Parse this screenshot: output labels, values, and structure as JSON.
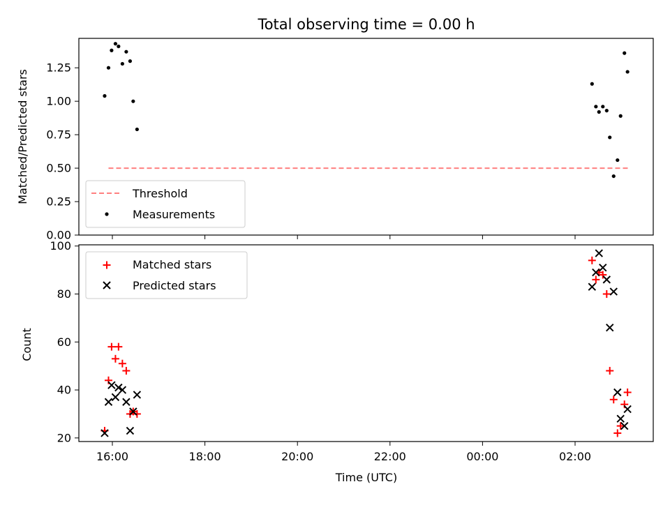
{
  "title": "Total observing time = 0.00 h",
  "chart_data": [
    {
      "type": "scatter",
      "ylabel": "Matched/Predicted stars",
      "xlabel": "",
      "ylim": [
        0,
        1.47
      ],
      "yticks": [
        "0.00",
        "0.25",
        "0.50",
        "0.75",
        "1.00",
        "1.25"
      ],
      "grid": false,
      "legend_position": "lower-left",
      "threshold": {
        "name": "Threshold",
        "value": 0.5,
        "x_start": "15:55",
        "x_end": "03:10",
        "color": "#ff7f7f"
      },
      "series": [
        {
          "name": "Measurements",
          "color": "#000000",
          "points": [
            [
              "15:50",
              1.04
            ],
            [
              "15:55",
              1.25
            ],
            [
              "15:59",
              1.38
            ],
            [
              "16:04",
              1.43
            ],
            [
              "16:08",
              1.41
            ],
            [
              "16:13",
              1.28
            ],
            [
              "16:18",
              1.37
            ],
            [
              "16:23",
              1.3
            ],
            [
              "16:27",
              1.0
            ],
            [
              "16:32",
              0.79
            ],
            [
              "02:22",
              1.13
            ],
            [
              "02:27",
              0.96
            ],
            [
              "02:31",
              0.92
            ],
            [
              "02:36",
              0.96
            ],
            [
              "02:41",
              0.93
            ],
            [
              "02:45",
              0.73
            ],
            [
              "02:50",
              0.44
            ],
            [
              "02:55",
              0.56
            ],
            [
              "02:59",
              0.89
            ],
            [
              "03:04",
              1.36
            ],
            [
              "03:08",
              1.22
            ]
          ]
        }
      ]
    },
    {
      "type": "scatter",
      "ylabel": "Count",
      "xlabel": "Time (UTC)",
      "ylim": [
        18.5,
        100.5
      ],
      "yticks": [
        "20",
        "40",
        "60",
        "80",
        "100"
      ],
      "xticks": [
        "16:00",
        "18:00",
        "20:00",
        "22:00",
        "00:00",
        "02:00"
      ],
      "grid": false,
      "legend_position": "upper-left",
      "series": [
        {
          "name": "Matched stars",
          "marker": "plus",
          "color": "#ff0000",
          "points": [
            [
              "15:50",
              23
            ],
            [
              "15:55",
              44
            ],
            [
              "15:59",
              58
            ],
            [
              "16:04",
              53
            ],
            [
              "16:08",
              58
            ],
            [
              "16:13",
              51
            ],
            [
              "16:18",
              48
            ],
            [
              "16:23",
              30
            ],
            [
              "16:27",
              31
            ],
            [
              "16:32",
              30
            ],
            [
              "02:22",
              94
            ],
            [
              "02:27",
              86
            ],
            [
              "02:31",
              89
            ],
            [
              "02:36",
              88
            ],
            [
              "02:41",
              80
            ],
            [
              "02:45",
              48
            ],
            [
              "02:50",
              36
            ],
            [
              "02:55",
              22
            ],
            [
              "02:59",
              25
            ],
            [
              "03:04",
              34
            ],
            [
              "03:08",
              39
            ]
          ]
        },
        {
          "name": "Predicted stars",
          "marker": "x",
          "color": "#000000",
          "points": [
            [
              "15:50",
              22
            ],
            [
              "15:55",
              35
            ],
            [
              "15:59",
              42
            ],
            [
              "16:04",
              37
            ],
            [
              "16:08",
              41
            ],
            [
              "16:13",
              40
            ],
            [
              "16:18",
              35
            ],
            [
              "16:23",
              23
            ],
            [
              "16:27",
              31
            ],
            [
              "16:32",
              38
            ],
            [
              "02:22",
              83
            ],
            [
              "02:27",
              89
            ],
            [
              "02:31",
              97
            ],
            [
              "02:36",
              91
            ],
            [
              "02:41",
              86
            ],
            [
              "02:45",
              66
            ],
            [
              "02:50",
              81
            ],
            [
              "02:55",
              39
            ],
            [
              "02:59",
              28
            ],
            [
              "03:04",
              25
            ],
            [
              "03:08",
              32
            ]
          ]
        }
      ]
    }
  ]
}
